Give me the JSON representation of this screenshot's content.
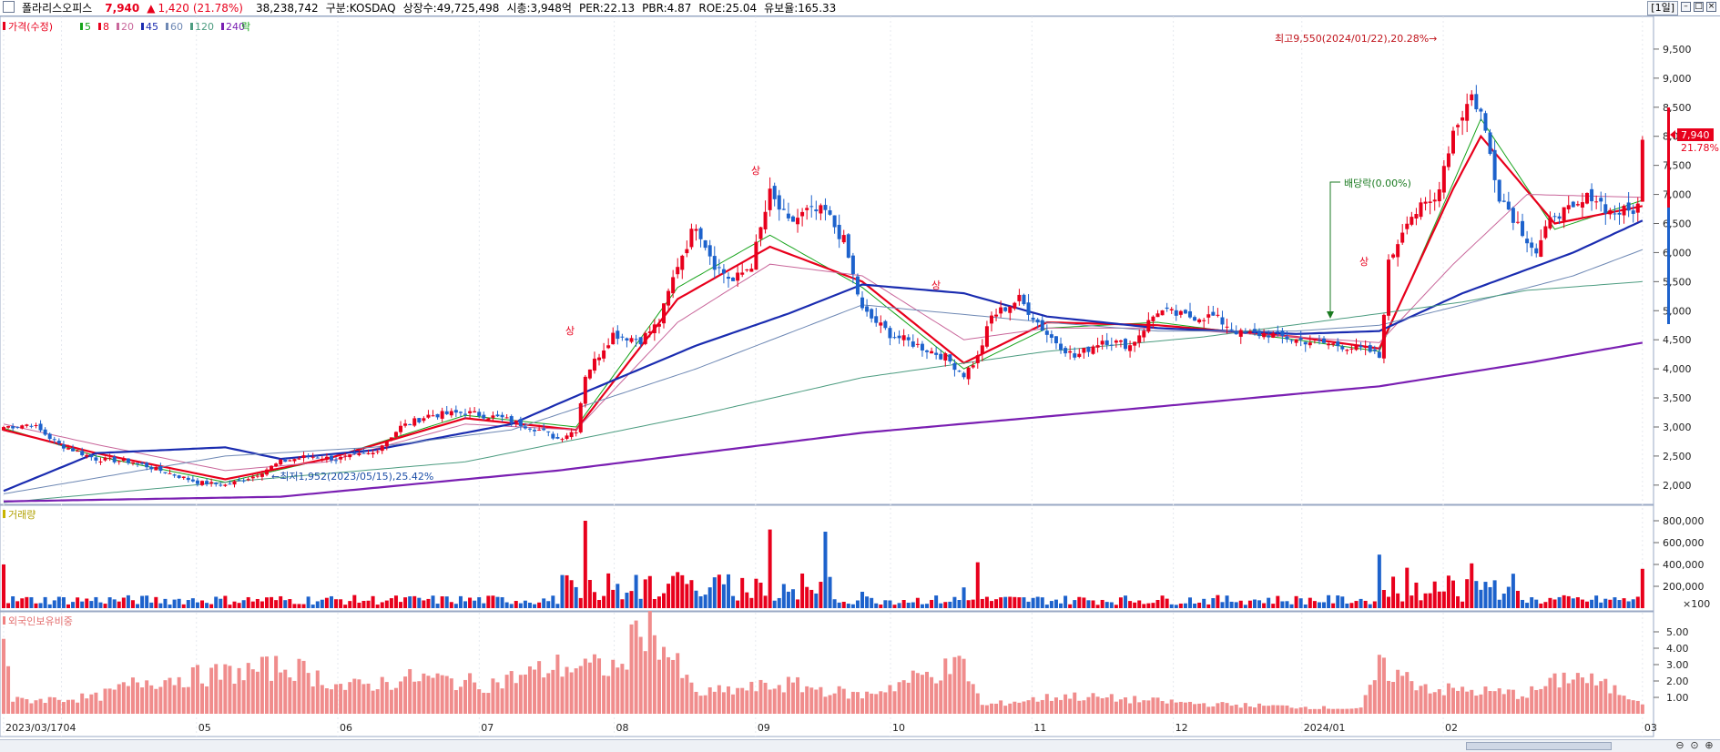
{
  "header": {
    "stock_name": "폴라리스오피스",
    "price": "7,940",
    "change_arrow": "▲",
    "change": "1,420",
    "change_pct": "(21.78%)",
    "volume": "38,238,742",
    "market": "구분:KOSDAQ",
    "shares": "상장수:49,725,498",
    "market_cap": "시총:3,948억",
    "per": "PER:22.13",
    "pbr": "PBR:4.87",
    "roe": "ROE:25.04",
    "float_ratio": "유보율:165.33",
    "period": "[1일]",
    "up_color": "#e8001c",
    "down_color": "#1d62cc"
  },
  "legend": {
    "price_label": "가격(수정)",
    "ma_items": [
      {
        "label": "5",
        "color": "#16a31a"
      },
      {
        "label": "8",
        "color": "#e8001c"
      },
      {
        "label": "20",
        "color": "#c9679b"
      },
      {
        "label": "45",
        "color": "#1a2cb0"
      },
      {
        "label": "60",
        "color": "#6e88b4"
      },
      {
        "label": "120",
        "color": "#4c9c80"
      },
      {
        "label": "240",
        "color": "#7a1fb2"
      }
    ],
    "ex_label": "락"
  },
  "chart_data": [
    {
      "type": "candlestick",
      "title": "가격(수정)",
      "y_ticks": [
        "9,500",
        "9,000",
        "8,500",
        "8,000",
        "7,500",
        "7,000",
        "6,500",
        "6,000",
        "5,500",
        "5,000",
        "4,500",
        "4,000",
        "3,500",
        "3,000",
        "2,500",
        "2,000"
      ],
      "ylim": [
        1700,
        10000
      ],
      "current_price_label": "7,940",
      "current_pct_label": "21.78%",
      "x_tick_labels": [
        "2023/03/17",
        "04",
        "05",
        "06",
        "07",
        "08",
        "09",
        "10",
        "11",
        "12",
        "2024/01",
        "02",
        "03"
      ],
      "annotations": {
        "high": "최고9,550(2024/01/22),20.28%→",
        "low": "←최저1,952(2023/05/15),25.42%",
        "ex_dividend": "배당락(0.00%)",
        "upper_limit_mark": "상"
      },
      "anchors": [
        [
          0,
          3000
        ],
        [
          6,
          3050
        ],
        [
          12,
          2700
        ],
        [
          20,
          2450
        ],
        [
          28,
          2400
        ],
        [
          36,
          2200
        ],
        [
          42,
          2050
        ],
        [
          48,
          2000
        ],
        [
          54,
          2150
        ],
        [
          60,
          2400
        ],
        [
          66,
          2500
        ],
        [
          72,
          2450
        ],
        [
          80,
          2550
        ],
        [
          86,
          3000
        ],
        [
          92,
          3200
        ],
        [
          100,
          3250
        ],
        [
          108,
          3150
        ],
        [
          116,
          2950
        ],
        [
          120,
          2800
        ],
        [
          124,
          2950
        ],
        [
          126,
          3900
        ],
        [
          132,
          4600
        ],
        [
          138,
          4500
        ],
        [
          142,
          4800
        ],
        [
          146,
          5800
        ],
        [
          150,
          6500
        ],
        [
          154,
          5800
        ],
        [
          158,
          5500
        ],
        [
          162,
          5800
        ],
        [
          166,
          7000
        ],
        [
          170,
          6500
        ],
        [
          174,
          6700
        ],
        [
          178,
          6700
        ],
        [
          182,
          6200
        ],
        [
          186,
          5000
        ],
        [
          192,
          4600
        ],
        [
          198,
          4400
        ],
        [
          204,
          4200
        ],
        [
          208,
          3900
        ],
        [
          211,
          4200
        ],
        [
          214,
          4900
        ],
        [
          220,
          5200
        ],
        [
          226,
          4600
        ],
        [
          232,
          4200
        ],
        [
          238,
          4500
        ],
        [
          244,
          4400
        ],
        [
          250,
          5000
        ],
        [
          256,
          4900
        ],
        [
          262,
          4900
        ],
        [
          268,
          4600
        ],
        [
          274,
          4600
        ],
        [
          280,
          4500
        ],
        [
          290,
          4400
        ],
        [
          296,
          4300
        ],
        [
          298,
          4200
        ],
        [
          300,
          5800
        ],
        [
          304,
          6600
        ],
        [
          310,
          6900
        ],
        [
          314,
          8100
        ],
        [
          318,
          8700
        ],
        [
          320,
          8400
        ],
        [
          324,
          7000
        ],
        [
          328,
          6500
        ],
        [
          332,
          6000
        ],
        [
          336,
          6700
        ],
        [
          340,
          6700
        ],
        [
          344,
          7000
        ],
        [
          348,
          6700
        ],
        [
          352,
          6700
        ],
        [
          354,
          6800
        ],
        [
          355,
          7940
        ]
      ],
      "moving_averages": [
        {
          "name": "5",
          "color": "#16a31a",
          "points": [
            [
              0,
              2980
            ],
            [
              20,
              2500
            ],
            [
              48,
              2050
            ],
            [
              70,
              2450
            ],
            [
              100,
              3200
            ],
            [
              124,
              3000
            ],
            [
              146,
              5400
            ],
            [
              166,
              6300
            ],
            [
              186,
              5400
            ],
            [
              208,
              4000
            ],
            [
              226,
              4700
            ],
            [
              250,
              4800
            ],
            [
              280,
              4500
            ],
            [
              298,
              4300
            ],
            [
              314,
              7200
            ],
            [
              320,
              8300
            ],
            [
              336,
              6400
            ],
            [
              355,
              6900
            ]
          ]
        },
        {
          "name": "8",
          "color": "#e8001c",
          "points": [
            [
              0,
              2950
            ],
            [
              20,
              2550
            ],
            [
              48,
              2100
            ],
            [
              70,
              2450
            ],
            [
              100,
              3150
            ],
            [
              124,
              2950
            ],
            [
              146,
              5200
            ],
            [
              166,
              6100
            ],
            [
              186,
              5500
            ],
            [
              208,
              4100
            ],
            [
              226,
              4800
            ],
            [
              250,
              4750
            ],
            [
              280,
              4550
            ],
            [
              298,
              4350
            ],
            [
              314,
              7100
            ],
            [
              320,
              8000
            ],
            [
              336,
              6500
            ],
            [
              355,
              6800
            ]
          ]
        },
        {
          "name": "20",
          "color": "#c9679b",
          "points": [
            [
              0,
              3050
            ],
            [
              20,
              2700
            ],
            [
              48,
              2250
            ],
            [
              70,
              2400
            ],
            [
              100,
              3050
            ],
            [
              124,
              2950
            ],
            [
              146,
              4800
            ],
            [
              166,
              5800
            ],
            [
              186,
              5600
            ],
            [
              208,
              4500
            ],
            [
              226,
              4700
            ],
            [
              250,
              4700
            ],
            [
              280,
              4550
            ],
            [
              298,
              4450
            ],
            [
              314,
              5800
            ],
            [
              330,
              7000
            ],
            [
              355,
              6950
            ]
          ]
        },
        {
          "name": "45",
          "color": "#1a2cb0",
          "points": [
            [
              0,
              1900
            ],
            [
              20,
              2550
            ],
            [
              48,
              2650
            ],
            [
              60,
              2450
            ],
            [
              80,
              2600
            ],
            [
              110,
              3050
            ],
            [
              126,
              3600
            ],
            [
              150,
              4400
            ],
            [
              170,
              4950
            ],
            [
              186,
              5450
            ],
            [
              208,
              5300
            ],
            [
              226,
              4900
            ],
            [
              250,
              4700
            ],
            [
              280,
              4600
            ],
            [
              298,
              4650
            ],
            [
              316,
              5300
            ],
            [
              340,
              6000
            ],
            [
              355,
              6550
            ]
          ]
        },
        {
          "name": "60",
          "color": "#6e88b4",
          "points": [
            [
              0,
              1850
            ],
            [
              48,
              2500
            ],
            [
              80,
              2650
            ],
            [
              110,
              2950
            ],
            [
              150,
              4000
            ],
            [
              186,
              5100
            ],
            [
              226,
              4800
            ],
            [
              250,
              4650
            ],
            [
              280,
              4650
            ],
            [
              298,
              4750
            ],
            [
              316,
              5100
            ],
            [
              340,
              5600
            ],
            [
              355,
              6050
            ]
          ]
        },
        {
          "name": "120",
          "color": "#4c9c80",
          "points": [
            [
              0,
              1700
            ],
            [
              48,
              2050
            ],
            [
              100,
              2400
            ],
            [
              150,
              3200
            ],
            [
              186,
              3850
            ],
            [
              226,
              4300
            ],
            [
              260,
              4550
            ],
            [
              298,
              4950
            ],
            [
              316,
              5150
            ],
            [
              330,
              5350
            ],
            [
              355,
              5500
            ]
          ]
        },
        {
          "name": "240",
          "color": "#7a1fb2",
          "points": [
            [
              0,
              1720
            ],
            [
              60,
              1800
            ],
            [
              120,
              2250
            ],
            [
              186,
              2900
            ],
            [
              250,
              3350
            ],
            [
              298,
              3700
            ],
            [
              330,
              4100
            ],
            [
              355,
              4450
            ]
          ]
        }
      ]
    },
    {
      "type": "bar",
      "title": "거래량",
      "y_ticks": [
        "800,000",
        "600,000",
        "400,000",
        "200,000",
        "×100"
      ],
      "ylim": [
        0,
        900000
      ]
    },
    {
      "type": "bar",
      "title": "외국인보유비중",
      "y_ticks": [
        "5.00",
        "4.00",
        "3.00",
        "2.00",
        "1.00"
      ],
      "ylim": [
        0,
        6.0
      ]
    }
  ]
}
